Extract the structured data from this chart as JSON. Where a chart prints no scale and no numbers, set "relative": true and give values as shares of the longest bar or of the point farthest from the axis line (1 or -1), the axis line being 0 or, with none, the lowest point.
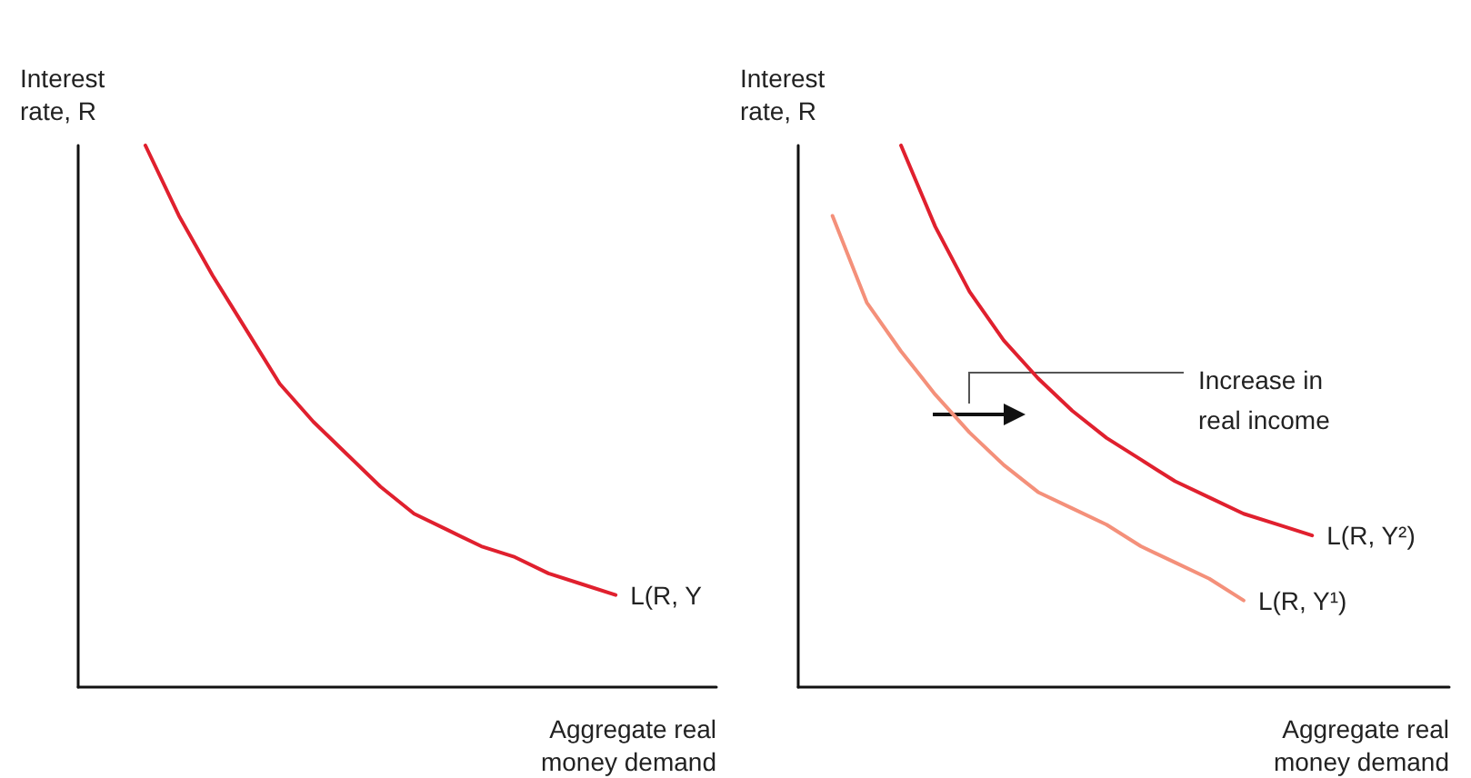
{
  "chart_data": [
    {
      "type": "line",
      "xlabel": "Aggregate real money demand",
      "ylabel": "Interest rate, R",
      "relative": true,
      "tick_labels": false,
      "marker": "none",
      "categories": [
        null,
        null,
        null,
        null,
        null,
        null,
        null,
        null,
        null,
        null,
        null,
        null,
        null,
        null,
        null,
        null,
        null,
        null,
        null,
        null
      ],
      "series": [
        {
          "name": "L(R, Y",
          "color": "#e0202e",
          "values": [
            null,
            null,
            1,
            0.87,
            0.76,
            0.66,
            0.56,
            0.49,
            0.43,
            0.37,
            0.32,
            0.29,
            0.26,
            0.24,
            0.21,
            0.19,
            0.17,
            null,
            null,
            null
          ]
        }
      ]
    },
    {
      "type": "line",
      "xlabel": "Aggregate real money demand",
      "ylabel": "Interest rate, R",
      "relative": true,
      "tick_labels": false,
      "marker": "none",
      "annotations": [
        "Increase in real income"
      ],
      "categories": [
        null,
        null,
        null,
        null,
        null,
        null,
        null,
        null,
        null,
        null,
        null,
        null,
        null,
        null,
        null,
        null,
        null,
        null,
        null,
        null
      ],
      "series": [
        {
          "name": "L(R, Y²)",
          "color": "#e0202e",
          "values": [
            null,
            null,
            null,
            1,
            0.85,
            0.73,
            0.64,
            0.57,
            0.51,
            0.46,
            0.42,
            0.38,
            0.35,
            0.32,
            0.3,
            0.28,
            null,
            null,
            null,
            null
          ]
        },
        {
          "name": "L(R, Y¹)",
          "color": "#f4907a",
          "values": [
            null,
            0.87,
            0.71,
            0.62,
            0.54,
            0.47,
            0.41,
            0.36,
            0.33,
            0.3,
            0.26,
            0.23,
            0.2,
            0.16,
            null,
            null,
            null,
            null,
            null,
            null
          ]
        }
      ]
    }
  ]
}
